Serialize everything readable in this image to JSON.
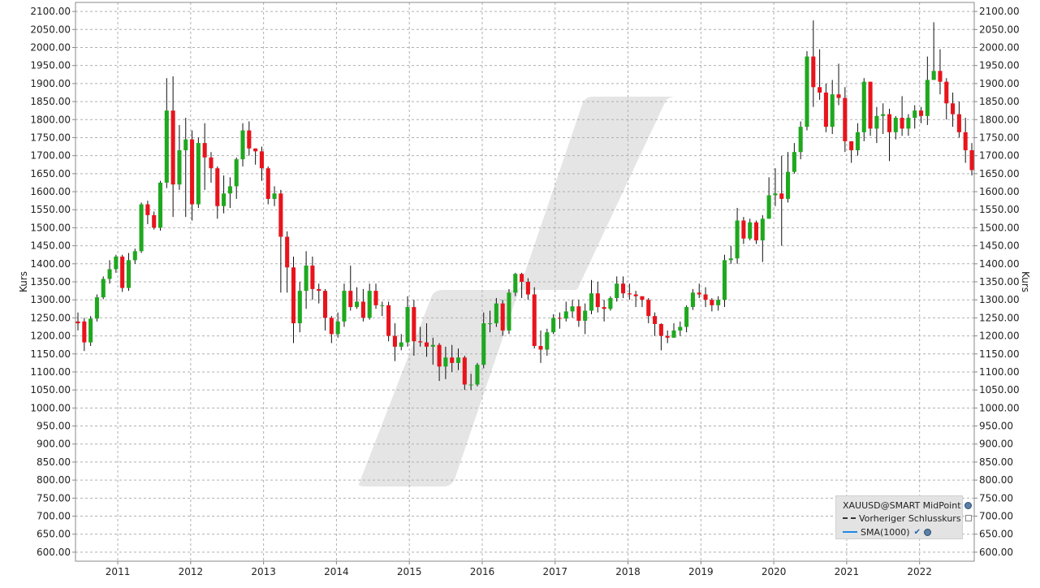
{
  "chart_data": {
    "type": "candlestick",
    "title": "",
    "xlabel": "",
    "ylabel": "Kurs",
    "ylim": [
      575,
      2125
    ],
    "y_ticks": [
      "600.00",
      "650.00",
      "700.00",
      "750.00",
      "800.00",
      "850.00",
      "900.00",
      "950.00",
      "1000.00",
      "1050.00",
      "1100.00",
      "1150.00",
      "1200.00",
      "1250.00",
      "1300.00",
      "1350.00",
      "1400.00",
      "1450.00",
      "1500.00",
      "1550.00",
      "1600.00",
      "1650.00",
      "1700.00",
      "1750.00",
      "1800.00",
      "1850.00",
      "1900.00",
      "1950.00",
      "2000.00",
      "2050.00",
      "2100.00"
    ],
    "y_tick_values": [
      600,
      650,
      700,
      750,
      800,
      850,
      900,
      950,
      1000,
      1050,
      1100,
      1150,
      1200,
      1250,
      1300,
      1350,
      1400,
      1450,
      1500,
      1550,
      1600,
      1650,
      1700,
      1750,
      1800,
      1850,
      1900,
      1950,
      2000,
      2050,
      2100
    ],
    "x_ticks": [
      "2011",
      "2012",
      "2013",
      "2014",
      "2015",
      "2016",
      "2017",
      "2018",
      "2019",
      "2020",
      "2021",
      "2022"
    ],
    "x_tick_values": [
      2011,
      2012,
      2013,
      2014,
      2015,
      2016,
      2017,
      2018,
      2019,
      2020,
      2021,
      2022
    ],
    "xlim": [
      2010.42,
      2022.75
    ],
    "grid": true,
    "legend_position": "bottom-right",
    "series": [
      {
        "name": "XAUUSD@SMART MidPoint",
        "type": "candlestick",
        "candles": [
          [
            1240,
            1235,
            1265,
            1215
          ],
          [
            1240,
            1182,
            1250,
            1158
          ],
          [
            1182,
            1248,
            1255,
            1172
          ],
          [
            1248,
            1307,
            1315,
            1240
          ],
          [
            1307,
            1358,
            1365,
            1302
          ],
          [
            1358,
            1385,
            1410,
            1345
          ],
          [
            1385,
            1420,
            1425,
            1375
          ],
          [
            1420,
            1333,
            1425,
            1322
          ],
          [
            1333,
            1410,
            1430,
            1325
          ],
          [
            1410,
            1435,
            1442,
            1400
          ],
          [
            1435,
            1565,
            1570,
            1430
          ],
          [
            1565,
            1535,
            1575,
            1510
          ],
          [
            1535,
            1500,
            1545,
            1495
          ],
          [
            1500,
            1625,
            1630,
            1492
          ],
          [
            1625,
            1825,
            1915,
            1610
          ],
          [
            1825,
            1620,
            1920,
            1530
          ],
          [
            1620,
            1715,
            1785,
            1605
          ],
          [
            1715,
            1745,
            1805,
            1530
          ],
          [
            1745,
            1565,
            1770,
            1520
          ],
          [
            1565,
            1735,
            1750,
            1555
          ],
          [
            1735,
            1695,
            1790,
            1605
          ],
          [
            1695,
            1665,
            1710,
            1625
          ],
          [
            1665,
            1560,
            1670,
            1525
          ],
          [
            1560,
            1595,
            1645,
            1540
          ],
          [
            1595,
            1615,
            1640,
            1555
          ],
          [
            1615,
            1690,
            1695,
            1580
          ],
          [
            1690,
            1770,
            1790,
            1670
          ],
          [
            1770,
            1720,
            1795,
            1700
          ],
          [
            1720,
            1712,
            1720,
            1675
          ],
          [
            1712,
            1665,
            1725,
            1630
          ],
          [
            1665,
            1580,
            1670,
            1565
          ],
          [
            1580,
            1595,
            1615,
            1560
          ],
          [
            1595,
            1475,
            1605,
            1320
          ],
          [
            1475,
            1390,
            1490,
            1320
          ],
          [
            1390,
            1235,
            1420,
            1180
          ],
          [
            1235,
            1325,
            1350,
            1210
          ],
          [
            1325,
            1395,
            1435,
            1275
          ],
          [
            1395,
            1330,
            1420,
            1300
          ],
          [
            1330,
            1325,
            1345,
            1290
          ],
          [
            1325,
            1250,
            1330,
            1215
          ],
          [
            1250,
            1205,
            1255,
            1180
          ],
          [
            1205,
            1240,
            1265,
            1195
          ],
          [
            1240,
            1325,
            1345,
            1225
          ],
          [
            1325,
            1280,
            1395,
            1270
          ],
          [
            1280,
            1295,
            1335,
            1275
          ],
          [
            1295,
            1250,
            1330,
            1240
          ],
          [
            1250,
            1325,
            1345,
            1245
          ],
          [
            1325,
            1285,
            1345,
            1275
          ],
          [
            1285,
            1285,
            1295,
            1255
          ],
          [
            1285,
            1200,
            1295,
            1185
          ],
          [
            1200,
            1170,
            1235,
            1130
          ],
          [
            1170,
            1182,
            1205,
            1160
          ],
          [
            1182,
            1280,
            1310,
            1170
          ],
          [
            1280,
            1185,
            1300,
            1145
          ],
          [
            1185,
            1182,
            1225,
            1170
          ],
          [
            1182,
            1170,
            1235,
            1142
          ],
          [
            1170,
            1175,
            1195,
            1120
          ],
          [
            1175,
            1115,
            1180,
            1075
          ],
          [
            1115,
            1140,
            1170,
            1080
          ],
          [
            1140,
            1125,
            1175,
            1100
          ],
          [
            1125,
            1140,
            1165,
            1105
          ],
          [
            1140,
            1065,
            1145,
            1050
          ],
          [
            1065,
            1065,
            1095,
            1050
          ],
          [
            1065,
            1120,
            1125,
            1060
          ],
          [
            1120,
            1235,
            1265,
            1110
          ],
          [
            1235,
            1235,
            1270,
            1210
          ],
          [
            1235,
            1290,
            1305,
            1225
          ],
          [
            1290,
            1215,
            1300,
            1200
          ],
          [
            1215,
            1320,
            1330,
            1205
          ],
          [
            1320,
            1372,
            1375,
            1310
          ],
          [
            1372,
            1350,
            1375,
            1305
          ],
          [
            1350,
            1315,
            1360,
            1300
          ],
          [
            1315,
            1172,
            1335,
            1165
          ],
          [
            1172,
            1162,
            1215,
            1125
          ],
          [
            1162,
            1210,
            1220,
            1145
          ],
          [
            1210,
            1250,
            1260,
            1205
          ],
          [
            1250,
            1248,
            1265,
            1220
          ],
          [
            1248,
            1268,
            1295,
            1240
          ],
          [
            1268,
            1282,
            1300,
            1250
          ],
          [
            1282,
            1242,
            1300,
            1225
          ],
          [
            1242,
            1270,
            1290,
            1205
          ],
          [
            1270,
            1318,
            1355,
            1260
          ],
          [
            1318,
            1280,
            1350,
            1265
          ],
          [
            1280,
            1275,
            1300,
            1240
          ],
          [
            1275,
            1305,
            1310,
            1270
          ],
          [
            1305,
            1345,
            1365,
            1295
          ],
          [
            1345,
            1318,
            1365,
            1305
          ],
          [
            1318,
            1315,
            1345,
            1300
          ],
          [
            1315,
            1310,
            1325,
            1280
          ],
          [
            1310,
            1300,
            1310,
            1280
          ],
          [
            1300,
            1255,
            1305,
            1235
          ],
          [
            1255,
            1233,
            1265,
            1200
          ],
          [
            1233,
            1200,
            1235,
            1160
          ],
          [
            1200,
            1195,
            1215,
            1180
          ],
          [
            1195,
            1215,
            1235,
            1195
          ],
          [
            1215,
            1225,
            1240,
            1200
          ],
          [
            1225,
            1280,
            1285,
            1210
          ],
          [
            1280,
            1320,
            1330,
            1272
          ],
          [
            1320,
            1315,
            1345,
            1305
          ],
          [
            1315,
            1300,
            1335,
            1280
          ],
          [
            1300,
            1285,
            1305,
            1268
          ],
          [
            1285,
            1300,
            1310,
            1270
          ],
          [
            1300,
            1410,
            1425,
            1280
          ],
          [
            1410,
            1415,
            1450,
            1400
          ],
          [
            1415,
            1520,
            1555,
            1400
          ],
          [
            1520,
            1470,
            1530,
            1455
          ],
          [
            1470,
            1515,
            1525,
            1465
          ],
          [
            1515,
            1465,
            1520,
            1455
          ],
          [
            1465,
            1525,
            1535,
            1405
          ],
          [
            1525,
            1590,
            1640,
            1525
          ],
          [
            1590,
            1595,
            1665,
            1560
          ],
          [
            1595,
            1580,
            1700,
            1450
          ],
          [
            1580,
            1655,
            1710,
            1570
          ],
          [
            1655,
            1710,
            1735,
            1650
          ],
          [
            1710,
            1780,
            1795,
            1690
          ],
          [
            1780,
            1975,
            1990,
            1770
          ],
          [
            1975,
            1890,
            2075,
            1835
          ],
          [
            1890,
            1875,
            1995,
            1855
          ],
          [
            1875,
            1780,
            1900,
            1765
          ],
          [
            1780,
            1870,
            1910,
            1760
          ],
          [
            1870,
            1860,
            1955,
            1840
          ],
          [
            1860,
            1740,
            1890,
            1710
          ],
          [
            1740,
            1715,
            1740,
            1680
          ],
          [
            1715,
            1765,
            1790,
            1700
          ],
          [
            1765,
            1905,
            1915,
            1740
          ],
          [
            1905,
            1775,
            1905,
            1755
          ],
          [
            1775,
            1810,
            1835,
            1735
          ],
          [
            1810,
            1815,
            1845,
            1760
          ],
          [
            1815,
            1765,
            1830,
            1685
          ],
          [
            1765,
            1805,
            1810,
            1745
          ],
          [
            1805,
            1775,
            1865,
            1755
          ],
          [
            1775,
            1805,
            1815,
            1755
          ],
          [
            1805,
            1825,
            1840,
            1775
          ],
          [
            1825,
            1810,
            1835,
            1790
          ],
          [
            1810,
            1910,
            1975,
            1785
          ],
          [
            1910,
            1935,
            2070,
            1920
          ],
          [
            1935,
            1905,
            1995,
            1870
          ],
          [
            1905,
            1845,
            1915,
            1800
          ],
          [
            1845,
            1815,
            1875,
            1780
          ],
          [
            1815,
            1765,
            1850,
            1750
          ],
          [
            1765,
            1715,
            1805,
            1680
          ],
          [
            1715,
            1660,
            1735,
            1645
          ]
        ]
      },
      {
        "name": "Vorheriger Schlusskurs",
        "type": "line"
      },
      {
        "name": "SMA(1000)",
        "type": "line"
      }
    ],
    "colors": {
      "up": "#1fa81f",
      "down": "#e8141c",
      "wick": "#111111",
      "grid": "#b0b0b0",
      "watermark": "#e5e5e5",
      "sma": "#1e88e5"
    }
  }
}
